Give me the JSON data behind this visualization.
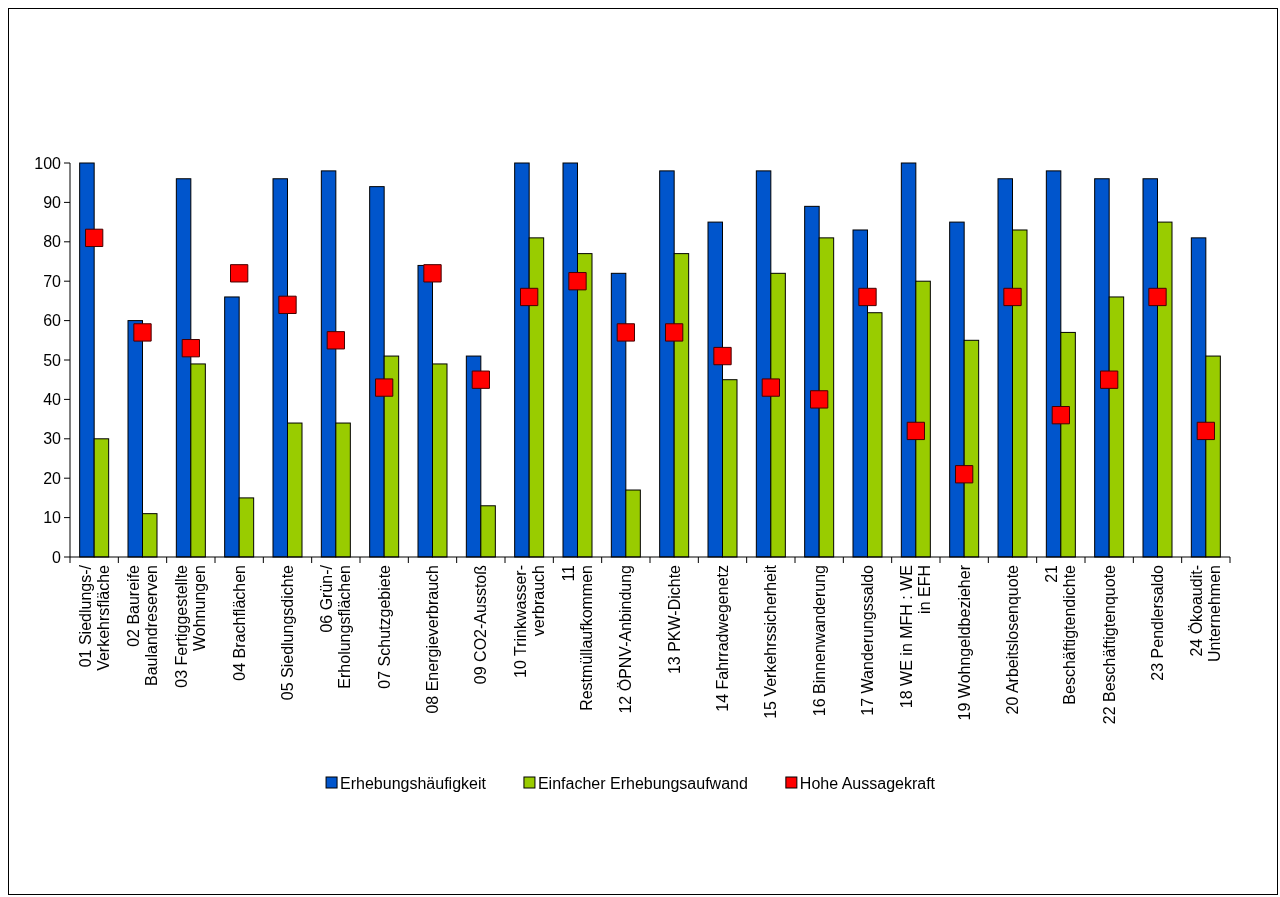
{
  "chart_data": {
    "type": "bar",
    "categories": [
      "01 Siedlungs-/ Verkehrsfläche",
      "02 Baureife Baulandreserven",
      "03 Fertiggestellte Wohnungen",
      "04 Brachflächen",
      "05 Siedlungsdichte",
      "06 Grün-/ Erholungsflächen",
      "07 Schutzgebiete",
      "08 Energieverbrauch",
      "09 CO2-Ausstoß",
      "10 Trinkwasser-verbrauch",
      "11 Restmüllaufkommen",
      "12 ÖPNV-Anbindung",
      "13 PKW-Dichte",
      "14 Fahrradwegenetz",
      "15 Verkehrssicherheit",
      "16 Binnenwanderung",
      "17 Wanderungssaldo",
      "18 WE in MFH : WE in EFH",
      "19 Wohngeldbezieher",
      "20 Arbeitslosenquote",
      "21 Beschäftigtendichte",
      "22 Beschäftigtenquote",
      "23 Pendlersaldo",
      "24 Ökoaudit-Unternehmen"
    ],
    "series": [
      {
        "name": "Erhebungshäufigkeit",
        "color": "#0055cc",
        "values": [
          100,
          60,
          96,
          66,
          96,
          98,
          94,
          74,
          51,
          100,
          100,
          72,
          98,
          85,
          98,
          89,
          83,
          100,
          85,
          96,
          98,
          96,
          96,
          81
        ]
      },
      {
        "name": "Einfacher Erhebungsaufwand",
        "color": "#99cc00",
        "values": [
          30,
          11,
          49,
          15,
          34,
          34,
          51,
          49,
          13,
          81,
          77,
          17,
          77,
          45,
          72,
          81,
          62,
          70,
          55,
          83,
          57,
          66,
          85,
          51
        ]
      },
      {
        "name": "Hohe Aussagekraft",
        "type": "scatter",
        "marker": "square",
        "color": "#ff0000",
        "values": [
          81,
          57,
          53,
          72,
          64,
          55,
          43,
          72,
          45,
          66,
          70,
          57,
          57,
          51,
          43,
          40,
          66,
          32,
          21,
          66,
          36,
          45,
          66,
          32
        ]
      }
    ],
    "ylim": [
      0,
      100
    ],
    "yticks": [
      0,
      10,
      20,
      30,
      40,
      50,
      60,
      70,
      80,
      90,
      100
    ],
    "legend": "bottom"
  }
}
